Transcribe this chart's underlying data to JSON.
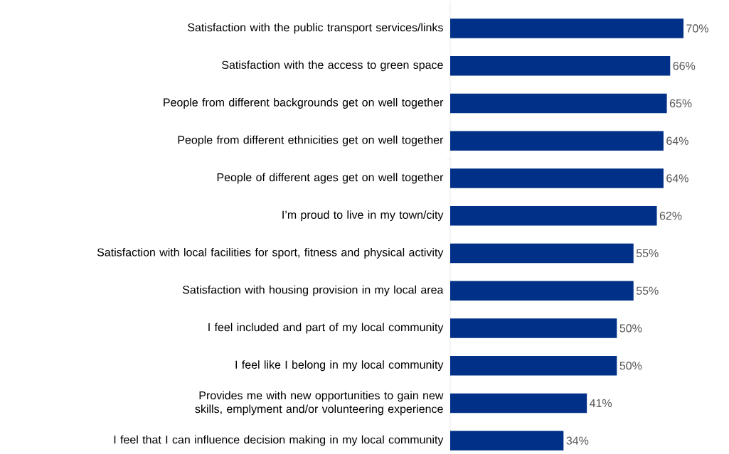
{
  "chart_data": {
    "type": "bar",
    "orientation": "horizontal",
    "color": "#003087",
    "categories": [
      "Satisfaction with the public transport services/links",
      "Satisfaction with the access to green space",
      "People from different backgrounds get on well together",
      "People from different ethnicities get on well together",
      "People of different ages get on well together",
      "I’m proud to live in my town/city",
      "Satisfaction with local facilities for sport, fitness and physical activity",
      "Satisfaction with housing provision in my local area",
      "I feel included and part of my local community",
      "I feel like I belong in my local community",
      "Provides me with new opportunities to gain new skills, emplyment and/or volunteering experience",
      "I feel that I can influence decision making in my local community"
    ],
    "values": [
      70,
      66,
      65,
      64,
      64,
      62,
      55,
      55,
      50,
      50,
      41,
      34
    ],
    "value_labels": [
      "70%",
      "66%",
      "65%",
      "64%",
      "64%",
      "62%",
      "55%",
      "55%",
      "50%",
      "50%",
      "41%",
      "34%"
    ]
  }
}
